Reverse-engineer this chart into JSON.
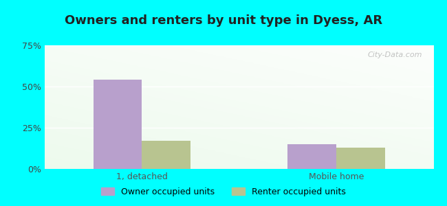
{
  "title": "Owners and renters by unit type in Dyess, AR",
  "categories": [
    "1, detached",
    "Mobile home"
  ],
  "owner_values": [
    54,
    15
  ],
  "renter_values": [
    17,
    13
  ],
  "owner_color": "#b8a0cc",
  "renter_color": "#b8c490",
  "bar_width": 0.25,
  "ylim": [
    0,
    75
  ],
  "yticks": [
    0,
    25,
    50,
    75
  ],
  "yticklabels": [
    "0%",
    "25%",
    "50%",
    "75%"
  ],
  "bg_top_color": "#f5fdf8",
  "bg_bottom_color": "#d4edda",
  "outer_background": "#00ffff",
  "grid_color": "#e8f5e9",
  "watermark": "City-Data.com",
  "legend_labels": [
    "Owner occupied units",
    "Renter occupied units"
  ],
  "title_fontsize": 13,
  "tick_fontsize": 9,
  "legend_fontsize": 9
}
